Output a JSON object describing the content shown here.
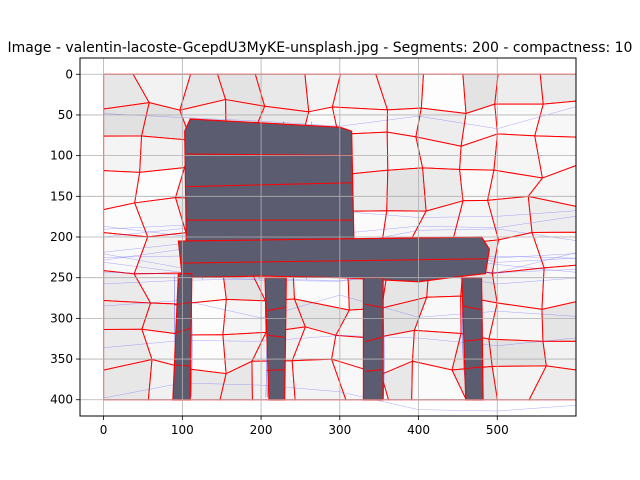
{
  "chart_data": {
    "type": "heatmap",
    "title": "Image - valentin-lacoste-GcepdU3MyKE-unsplash.jpg - Segments: 200 - compactness: 10",
    "xlabel": "",
    "ylabel": "",
    "xlim": [
      -30,
      600
    ],
    "ylim": [
      420,
      -20
    ],
    "x_ticks": [
      0,
      100,
      200,
      300,
      400,
      500
    ],
    "y_ticks": [
      0,
      50,
      100,
      150,
      200,
      250,
      300,
      350,
      400
    ],
    "x_tick_labels": [
      "0",
      "100",
      "200",
      "300",
      "400",
      "500"
    ],
    "y_tick_labels": [
      "0",
      "50",
      "100",
      "150",
      "200",
      "250",
      "300",
      "350",
      "400"
    ],
    "image_extent": [
      0,
      600,
      400,
      0
    ],
    "grid": true,
    "segment_boundary_color": "#ff0000",
    "contour_color": "#4444ff",
    "background_gray": "#e4e4e4",
    "dark_segment_color": "#5c5c70",
    "dark_regions": [
      {
        "label": "chair-back",
        "points": [
          [
            110,
            55
          ],
          [
            300,
            65
          ],
          [
            315,
            70
          ],
          [
            318,
            210
          ],
          [
            250,
            215
          ],
          [
            200,
            210
          ],
          [
            130,
            212
          ],
          [
            105,
            205
          ],
          [
            103,
            70
          ]
        ]
      },
      {
        "label": "chair-seat",
        "points": [
          [
            95,
            205
          ],
          [
            480,
            200
          ],
          [
            490,
            215
          ],
          [
            485,
            245
          ],
          [
            440,
            250
          ],
          [
            400,
            255
          ],
          [
            300,
            250
          ],
          [
            200,
            248
          ],
          [
            100,
            250
          ]
        ]
      },
      {
        "label": "front-left-leg",
        "points": [
          [
            95,
            245
          ],
          [
            112,
            245
          ],
          [
            110,
            400
          ],
          [
            88,
            400
          ]
        ]
      },
      {
        "label": "back-left-leg",
        "points": [
          [
            205,
            250
          ],
          [
            232,
            250
          ],
          [
            230,
            400
          ],
          [
            210,
            400
          ]
        ]
      },
      {
        "label": "center-leg",
        "points": [
          [
            330,
            250
          ],
          [
            355,
            250
          ],
          [
            355,
            400
          ],
          [
            330,
            400
          ]
        ]
      },
      {
        "label": "right-leg",
        "points": [
          [
            455,
            250
          ],
          [
            480,
            250
          ],
          [
            482,
            400
          ],
          [
            460,
            400
          ]
        ]
      }
    ]
  }
}
